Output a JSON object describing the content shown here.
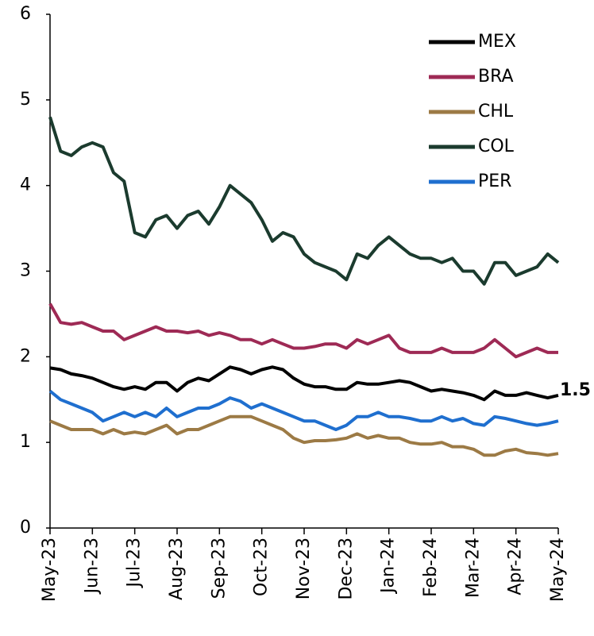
{
  "chart_data": {
    "type": "line",
    "annotation": "1.5",
    "xticks": [
      "May-23",
      "Jun-23",
      "Jul-23",
      "Aug-23",
      "Sep-23",
      "Oct-23",
      "Nov-23",
      "Dec-23",
      "Jan-24",
      "Feb-24",
      "Mar-24",
      "Apr-24",
      "May-24"
    ],
    "ylim": [
      0,
      6
    ],
    "yticks": [
      0,
      1,
      2,
      3,
      4,
      5,
      6
    ],
    "grid": false,
    "legend": "upper right",
    "series": [
      {
        "name": "MEX",
        "color": "#000000",
        "values": [
          1.87,
          1.85,
          1.8,
          1.78,
          1.75,
          1.7,
          1.65,
          1.62,
          1.65,
          1.62,
          1.7,
          1.7,
          1.6,
          1.7,
          1.75,
          1.72,
          1.8,
          1.88,
          1.85,
          1.8,
          1.85,
          1.88,
          1.85,
          1.75,
          1.68,
          1.65,
          1.65,
          1.62,
          1.62,
          1.7,
          1.68,
          1.68,
          1.7,
          1.72,
          1.7,
          1.65,
          1.6,
          1.62,
          1.6,
          1.58,
          1.55,
          1.5,
          1.6,
          1.55,
          1.55,
          1.58,
          1.55,
          1.52,
          1.55
        ]
      },
      {
        "name": "BRA",
        "color": "#9e2a55",
        "values": [
          2.62,
          2.4,
          2.38,
          2.4,
          2.35,
          2.3,
          2.3,
          2.2,
          2.25,
          2.3,
          2.35,
          2.3,
          2.3,
          2.28,
          2.3,
          2.25,
          2.28,
          2.25,
          2.2,
          2.2,
          2.15,
          2.2,
          2.15,
          2.1,
          2.1,
          2.12,
          2.15,
          2.15,
          2.1,
          2.2,
          2.15,
          2.2,
          2.25,
          2.1,
          2.05,
          2.05,
          2.05,
          2.1,
          2.05,
          2.05,
          2.05,
          2.1,
          2.2,
          2.1,
          2.0,
          2.05,
          2.1,
          2.05,
          2.05
        ]
      },
      {
        "name": "CHL",
        "color": "#9c7a45",
        "values": [
          1.25,
          1.2,
          1.15,
          1.15,
          1.15,
          1.1,
          1.15,
          1.1,
          1.12,
          1.1,
          1.15,
          1.2,
          1.1,
          1.15,
          1.15,
          1.2,
          1.25,
          1.3,
          1.3,
          1.3,
          1.25,
          1.2,
          1.15,
          1.05,
          1.0,
          1.02,
          1.02,
          1.03,
          1.05,
          1.1,
          1.05,
          1.08,
          1.05,
          1.05,
          1.0,
          0.98,
          0.98,
          1.0,
          0.95,
          0.95,
          0.92,
          0.85,
          0.85,
          0.9,
          0.92,
          0.88,
          0.87,
          0.85,
          0.87
        ]
      },
      {
        "name": "COL",
        "color": "#1b3b2e",
        "values": [
          4.8,
          4.4,
          4.35,
          4.45,
          4.5,
          4.45,
          4.15,
          4.05,
          3.45,
          3.4,
          3.6,
          3.65,
          3.5,
          3.65,
          3.7,
          3.55,
          3.75,
          4.0,
          3.9,
          3.8,
          3.6,
          3.35,
          3.45,
          3.4,
          3.2,
          3.1,
          3.05,
          3.0,
          2.9,
          3.2,
          3.15,
          3.3,
          3.4,
          3.3,
          3.2,
          3.15,
          3.15,
          3.1,
          3.15,
          3.0,
          3.0,
          2.85,
          3.1,
          3.1,
          2.95,
          3.0,
          3.05,
          3.2,
          3.1
        ]
      },
      {
        "name": "PER",
        "color": "#1f6fcf",
        "values": [
          1.6,
          1.5,
          1.45,
          1.4,
          1.35,
          1.25,
          1.3,
          1.35,
          1.3,
          1.35,
          1.3,
          1.4,
          1.3,
          1.35,
          1.4,
          1.4,
          1.45,
          1.52,
          1.48,
          1.4,
          1.45,
          1.4,
          1.35,
          1.3,
          1.25,
          1.25,
          1.2,
          1.15,
          1.2,
          1.3,
          1.3,
          1.35,
          1.3,
          1.3,
          1.28,
          1.25,
          1.25,
          1.3,
          1.25,
          1.28,
          1.22,
          1.2,
          1.3,
          1.28,
          1.25,
          1.22,
          1.2,
          1.22,
          1.25
        ]
      }
    ]
  }
}
